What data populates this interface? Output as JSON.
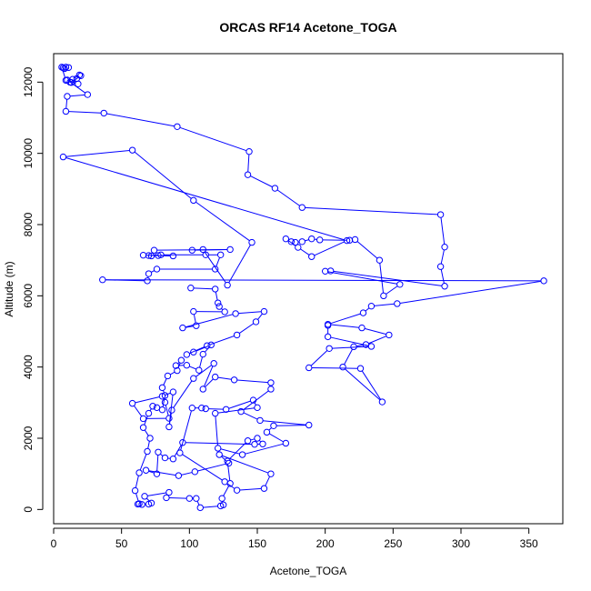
{
  "chart_data": {
    "type": "line",
    "title": "ORCAS RF14 Acetone_TOGA",
    "xlabel": "Acetone_TOGA",
    "ylabel": "Altitude (m)",
    "xlim": [
      0,
      375
    ],
    "ylim": [
      -400,
      12800
    ],
    "xticks": [
      0,
      50,
      100,
      150,
      200,
      250,
      300,
      350
    ],
    "yticks": [
      0,
      2000,
      4000,
      6000,
      8000,
      10000,
      12000
    ],
    "grid": false,
    "legend": "none",
    "series_color": "#0000ff",
    "marker": "open-circle",
    "series": [
      {
        "points": [
          [
            7,
            12400
          ],
          [
            9,
            12420
          ],
          [
            11,
            12410
          ],
          [
            8,
            12380
          ],
          [
            6,
            12420
          ],
          [
            9,
            12050
          ],
          [
            12,
            12000
          ],
          [
            14,
            12080
          ],
          [
            19,
            12200
          ],
          [
            17,
            12100
          ],
          [
            20,
            12180
          ],
          [
            13,
            11990
          ],
          [
            18,
            11950
          ],
          [
            10,
            12060
          ],
          [
            25,
            11650
          ],
          [
            10,
            11600
          ],
          [
            9,
            11180
          ],
          [
            37,
            11130
          ],
          [
            91,
            10750
          ],
          [
            144,
            10050
          ],
          [
            143,
            9400
          ],
          [
            163,
            9020
          ],
          [
            183,
            8480
          ],
          [
            285,
            8280
          ],
          [
            288,
            7370
          ],
          [
            285,
            6820
          ],
          [
            288,
            6270
          ],
          [
            204,
            6700
          ],
          [
            200,
            6690
          ],
          [
            255,
            6320
          ],
          [
            243,
            6000
          ],
          [
            240,
            7000
          ],
          [
            222,
            7580
          ],
          [
            218,
            7560
          ],
          [
            196,
            7570
          ],
          [
            190,
            7600
          ],
          [
            183,
            7520
          ],
          [
            178,
            7500
          ],
          [
            175,
            7520
          ],
          [
            171,
            7600
          ],
          [
            180,
            7360
          ],
          [
            190,
            7100
          ],
          [
            216,
            7550
          ],
          [
            7,
            9900
          ],
          [
            58,
            10090
          ],
          [
            103,
            8680
          ],
          [
            146,
            7500
          ],
          [
            128,
            6300
          ],
          [
            110,
            7300
          ],
          [
            102,
            7280
          ],
          [
            130,
            7300
          ],
          [
            74,
            7280
          ],
          [
            72,
            7120
          ],
          [
            77,
            7130
          ],
          [
            88,
            7120
          ],
          [
            66,
            7140
          ],
          [
            70,
            7130
          ],
          [
            79,
            7150
          ],
          [
            112,
            7150
          ],
          [
            123,
            7150
          ],
          [
            119,
            6750
          ],
          [
            76,
            6750
          ],
          [
            70,
            6620
          ],
          [
            69,
            6420
          ],
          [
            36,
            6450
          ],
          [
            361,
            6420
          ],
          [
            253,
            5780
          ],
          [
            234,
            5710
          ],
          [
            228,
            5520
          ],
          [
            202,
            5200
          ],
          [
            227,
            5100
          ],
          [
            247,
            4900
          ],
          [
            230,
            4630
          ],
          [
            221,
            4570
          ],
          [
            213,
            4000
          ],
          [
            242,
            3020
          ],
          [
            226,
            3960
          ],
          [
            188,
            3980
          ],
          [
            203,
            4520
          ],
          [
            234,
            4580
          ],
          [
            202,
            4850
          ],
          [
            202,
            5170
          ]
        ]
      },
      {
        "points": [
          [
            101,
            6220
          ],
          [
            119,
            6190
          ],
          [
            121,
            5800
          ],
          [
            122,
            5700
          ],
          [
            126,
            5550
          ],
          [
            103,
            5560
          ],
          [
            105,
            5160
          ],
          [
            95,
            5100
          ],
          [
            134,
            5500
          ],
          [
            155,
            5560
          ],
          [
            149,
            5270
          ],
          [
            135,
            4900
          ],
          [
            113,
            4600
          ],
          [
            98,
            4350
          ],
          [
            103,
            4420
          ],
          [
            116,
            4620
          ],
          [
            110,
            4360
          ],
          [
            107,
            3910
          ],
          [
            98,
            4050
          ],
          [
            90,
            4040
          ],
          [
            94,
            4190
          ],
          [
            91,
            3900
          ],
          [
            84,
            3750
          ],
          [
            80,
            3420
          ],
          [
            82,
            3200
          ],
          [
            80,
            2800
          ],
          [
            76,
            2860
          ],
          [
            73,
            2900
          ],
          [
            70,
            2700
          ],
          [
            66,
            2300
          ],
          [
            71,
            2000
          ],
          [
            69,
            1630
          ],
          [
            63,
            1030
          ],
          [
            60,
            530
          ],
          [
            63,
            160
          ],
          [
            62,
            150
          ],
          [
            65,
            140
          ],
          [
            70,
            150
          ],
          [
            72,
            180
          ],
          [
            67,
            370
          ],
          [
            85,
            480
          ],
          [
            83,
            330
          ],
          [
            100,
            310
          ],
          [
            105,
            310
          ],
          [
            108,
            50
          ],
          [
            123,
            100
          ],
          [
            125,
            130
          ],
          [
            124,
            310
          ],
          [
            130,
            730
          ],
          [
            128,
            1360
          ],
          [
            143,
            1930
          ],
          [
            150,
            2000
          ],
          [
            154,
            1840
          ],
          [
            148,
            1830
          ],
          [
            95,
            1880
          ],
          [
            88,
            1420
          ],
          [
            82,
            1450
          ],
          [
            77,
            1610
          ],
          [
            76,
            1000
          ],
          [
            68,
            1100
          ],
          [
            92,
            950
          ],
          [
            104,
            1060
          ],
          [
            129,
            1300
          ],
          [
            122,
            1540
          ],
          [
            160,
            1000
          ],
          [
            155,
            590
          ],
          [
            135,
            540
          ],
          [
            126,
            780
          ],
          [
            93,
            1590
          ],
          [
            102,
            2850
          ],
          [
            109,
            2850
          ],
          [
            112,
            2830
          ],
          [
            127,
            2810
          ],
          [
            147,
            3070
          ],
          [
            150,
            2860
          ],
          [
            119,
            2700
          ],
          [
            121,
            1720
          ],
          [
            139,
            1540
          ],
          [
            171,
            1860
          ],
          [
            157,
            2170
          ],
          [
            162,
            2350
          ],
          [
            188,
            2370
          ],
          [
            152,
            2500
          ],
          [
            138,
            2750
          ],
          [
            160,
            3380
          ],
          [
            160,
            3560
          ],
          [
            133,
            3640
          ],
          [
            119,
            3720
          ],
          [
            110,
            3380
          ],
          [
            118,
            4100
          ],
          [
            103,
            3680
          ],
          [
            87,
            2790
          ],
          [
            85,
            2320
          ],
          [
            88,
            3300
          ],
          [
            80,
            3180
          ],
          [
            58,
            2980
          ],
          [
            66,
            2550
          ],
          [
            85,
            2560
          ],
          [
            82,
            3010
          ]
        ]
      }
    ]
  }
}
